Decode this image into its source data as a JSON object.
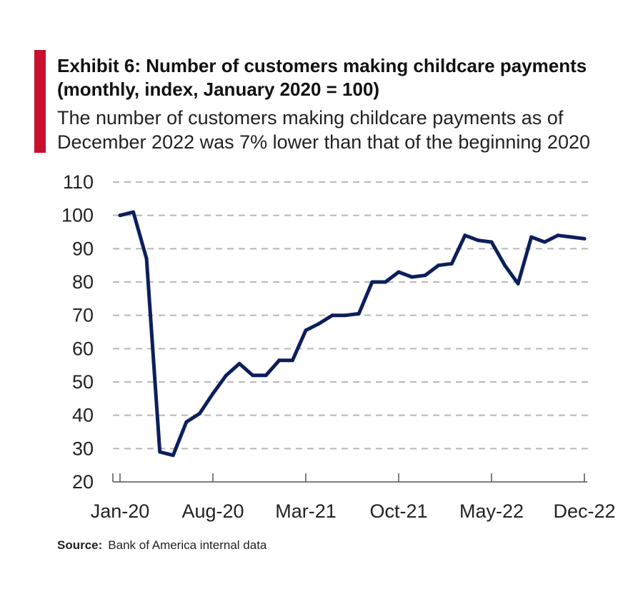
{
  "header": {
    "title": "Exhibit 6: Number of customers making childcare payments (monthly, index, January 2020 = 100)",
    "subtitle": "The number of customers making childcare payments as of December 2022 was 7% lower than that of the beginning 2020"
  },
  "source": {
    "label": "Source:",
    "text": "Bank of America internal data"
  },
  "colors": {
    "accent": "#c8102e",
    "line": "#0c1f5c",
    "grid": "#b8b8b8"
  },
  "chart_data": {
    "type": "line",
    "title": "Exhibit 6: Number of customers making childcare payments (monthly, index, January 2020 = 100)",
    "xlabel": "",
    "ylabel": "",
    "ylim": [
      20,
      110
    ],
    "yticks": [
      20,
      30,
      40,
      50,
      60,
      70,
      80,
      90,
      100,
      110
    ],
    "grid": true,
    "x_tick_labels": [
      "Jan-20",
      "Aug-20",
      "Mar-21",
      "Oct-21",
      "May-22",
      "Dec-22"
    ],
    "x_tick_indices": [
      0,
      7,
      14,
      21,
      28,
      35
    ],
    "categories": [
      "Jan-20",
      "Feb-20",
      "Mar-20",
      "Apr-20",
      "May-20",
      "Jun-20",
      "Jul-20",
      "Aug-20",
      "Sep-20",
      "Oct-20",
      "Nov-20",
      "Dec-20",
      "Jan-21",
      "Feb-21",
      "Mar-21",
      "Apr-21",
      "May-21",
      "Jun-21",
      "Jul-21",
      "Aug-21",
      "Sep-21",
      "Oct-21",
      "Nov-21",
      "Dec-21",
      "Jan-22",
      "Feb-22",
      "Mar-22",
      "Apr-22",
      "May-22",
      "Jun-22",
      "Jul-22",
      "Aug-22",
      "Sep-22",
      "Oct-22",
      "Nov-22",
      "Dec-22"
    ],
    "series": [
      {
        "values": [
          100,
          101,
          87,
          29,
          28,
          38,
          40.5,
          46.5,
          52,
          55.5,
          52,
          52,
          56.5,
          56.5,
          65.5,
          67.5,
          70,
          70,
          70.5,
          80,
          80,
          83,
          81.5,
          82,
          85,
          85.5,
          94,
          92.5,
          92,
          85,
          79.5,
          93.5,
          92,
          94,
          93.5,
          93
        ]
      }
    ]
  }
}
